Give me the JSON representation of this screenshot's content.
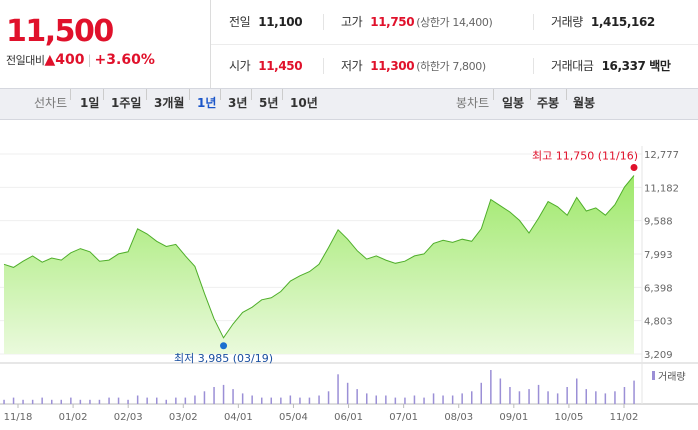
{
  "price": {
    "current": "11,500",
    "change_label": "전일대비",
    "change_arrow": "▲",
    "change_value": "400",
    "change_pct": "+3.60%"
  },
  "quote": {
    "prev_close": {
      "label": "전일",
      "value": "11,100"
    },
    "high": {
      "label": "고가",
      "value": "11,750",
      "sub": "(상한가 14,400)"
    },
    "volume": {
      "label": "거래량",
      "value": "1,415,162"
    },
    "open": {
      "label": "시가",
      "value": "11,450"
    },
    "low": {
      "label": "저가",
      "value": "11,300",
      "sub": "(하한가 7,800)"
    },
    "amount": {
      "label": "거래대금",
      "value": "16,337 백만"
    }
  },
  "line_tabs": {
    "heading": "선차트",
    "items": [
      "1일",
      "1주일",
      "3개월",
      "1년",
      "3년",
      "5년",
      "10년"
    ],
    "active": "1년"
  },
  "candle_tabs": {
    "heading": "봉차트",
    "items": [
      "일봉",
      "주봉",
      "월봉"
    ]
  },
  "chart_data": {
    "type": "area",
    "y_ticks": [
      "12,777",
      "11,182",
      "9,588",
      "7,993",
      "6,398",
      "4,803",
      "3,209"
    ],
    "ylim": [
      3209,
      12777
    ],
    "x_ticks": [
      "11/18",
      "01/02",
      "02/03",
      "03/02",
      "04/01",
      "05/04",
      "06/01",
      "07/01",
      "08/03",
      "09/01",
      "10/05",
      "11/02"
    ],
    "high_annotation": "최고 11,750 (11/16)",
    "low_annotation": "최저 3,985 (03/19)",
    "volume_legend": "거래량",
    "colors": {
      "area_top": "#9ee86a",
      "area_bottom": "#eafadc",
      "line": "#4fae2a",
      "high_marker": "#e0112b",
      "low_marker": "#1a6fd0",
      "volume_bar": "#9b8fd6"
    },
    "series": [
      {
        "x": "11/18",
        "y": 7500
      },
      {
        "x": "11/21",
        "y": 7350
      },
      {
        "x": "11/26",
        "y": 7650
      },
      {
        "x": "12/02",
        "y": 7900
      },
      {
        "x": "12/09",
        "y": 7600
      },
      {
        "x": "12/16",
        "y": 7800
      },
      {
        "x": "12/23",
        "y": 7700
      },
      {
        "x": "01/02",
        "y": 8050
      },
      {
        "x": "01/09",
        "y": 8250
      },
      {
        "x": "01/16",
        "y": 8100
      },
      {
        "x": "01/23",
        "y": 7650
      },
      {
        "x": "01/30",
        "y": 7700
      },
      {
        "x": "02/03",
        "y": 8000
      },
      {
        "x": "02/10",
        "y": 8100
      },
      {
        "x": "02/14",
        "y": 9200
      },
      {
        "x": "02/19",
        "y": 8950
      },
      {
        "x": "02/24",
        "y": 8600
      },
      {
        "x": "02/28",
        "y": 8350
      },
      {
        "x": "03/04",
        "y": 8450
      },
      {
        "x": "03/06",
        "y": 7900
      },
      {
        "x": "03/10",
        "y": 7400
      },
      {
        "x": "03/13",
        "y": 6100
      },
      {
        "x": "03/17",
        "y": 4900
      },
      {
        "x": "03/19",
        "y": 3985
      },
      {
        "x": "03/23",
        "y": 4650
      },
      {
        "x": "03/26",
        "y": 5200
      },
      {
        "x": "04/01",
        "y": 5450
      },
      {
        "x": "04/08",
        "y": 5800
      },
      {
        "x": "04/15",
        "y": 5900
      },
      {
        "x": "04/22",
        "y": 6200
      },
      {
        "x": "04/29",
        "y": 6700
      },
      {
        "x": "05/04",
        "y": 6950
      },
      {
        "x": "05/11",
        "y": 7150
      },
      {
        "x": "05/18",
        "y": 7500
      },
      {
        "x": "05/25",
        "y": 8300
      },
      {
        "x": "06/01",
        "y": 9150
      },
      {
        "x": "06/04",
        "y": 8700
      },
      {
        "x": "06/08",
        "y": 8150
      },
      {
        "x": "06/12",
        "y": 7750
      },
      {
        "x": "06/17",
        "y": 7900
      },
      {
        "x": "06/24",
        "y": 7700
      },
      {
        "x": "07/01",
        "y": 7550
      },
      {
        "x": "07/08",
        "y": 7650
      },
      {
        "x": "07/15",
        "y": 7900
      },
      {
        "x": "07/22",
        "y": 8000
      },
      {
        "x": "07/27",
        "y": 8500
      },
      {
        "x": "08/03",
        "y": 8650
      },
      {
        "x": "08/10",
        "y": 8550
      },
      {
        "x": "08/17",
        "y": 8700
      },
      {
        "x": "08/24",
        "y": 8600
      },
      {
        "x": "08/28",
        "y": 9200
      },
      {
        "x": "09/01",
        "y": 10600
      },
      {
        "x": "09/08",
        "y": 10300
      },
      {
        "x": "09/14",
        "y": 10000
      },
      {
        "x": "09/21",
        "y": 9600
      },
      {
        "x": "09/25",
        "y": 9000
      },
      {
        "x": "10/05",
        "y": 9700
      },
      {
        "x": "10/12",
        "y": 10500
      },
      {
        "x": "10/16",
        "y": 10250
      },
      {
        "x": "10/20",
        "y": 9850
      },
      {
        "x": "10/23",
        "y": 10700
      },
      {
        "x": "10/27",
        "y": 10050
      },
      {
        "x": "11/02",
        "y": 10200
      },
      {
        "x": "11/06",
        "y": 9850
      },
      {
        "x": "11/10",
        "y": 10350
      },
      {
        "x": "11/13",
        "y": 11200
      },
      {
        "x": "11/16",
        "y": 11750
      }
    ],
    "volume": [
      2,
      3,
      2,
      2,
      3,
      2,
      2,
      3,
      2,
      2,
      2,
      3,
      3,
      2,
      4,
      3,
      3,
      2,
      3,
      3,
      4,
      6,
      8,
      9,
      7,
      5,
      4,
      3,
      3,
      3,
      4,
      3,
      3,
      4,
      6,
      14,
      10,
      7,
      5,
      4,
      4,
      3,
      3,
      4,
      3,
      5,
      4,
      4,
      5,
      6,
      10,
      16,
      12,
      8,
      6,
      7,
      9,
      6,
      5,
      8,
      12,
      7,
      6,
      5,
      6,
      8,
      11
    ]
  }
}
